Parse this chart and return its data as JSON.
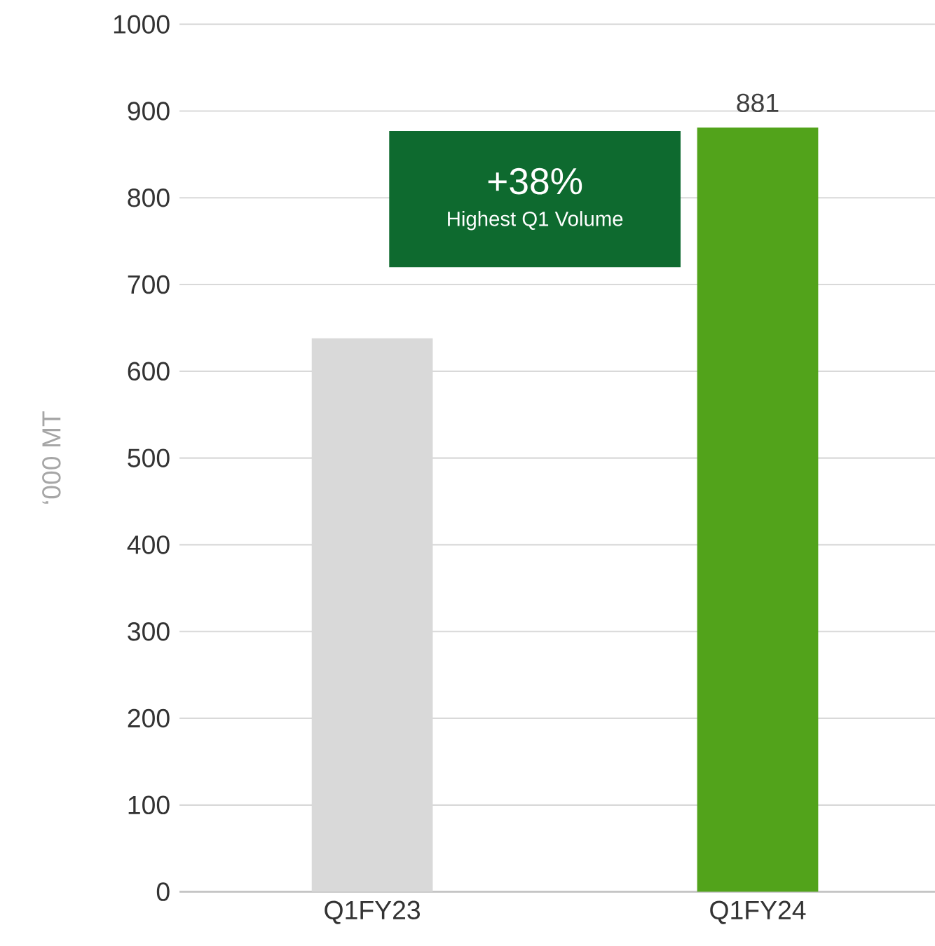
{
  "chart_data": {
    "type": "bar",
    "ylabel": "‘000 MT",
    "categories": [
      "Q1FY23",
      "Q1FY24"
    ],
    "values": [
      638,
      881
    ],
    "colors": [
      "#d9d9d9",
      "#52a31b"
    ],
    "value_labels": [
      null,
      "881"
    ],
    "ylim": [
      0,
      1000
    ],
    "yticks": [
      0,
      100,
      200,
      300,
      400,
      500,
      600,
      700,
      800,
      900,
      1000
    ],
    "grid": "y",
    "annotations": [
      "+38%",
      "Highest Q1 Volume"
    ]
  }
}
